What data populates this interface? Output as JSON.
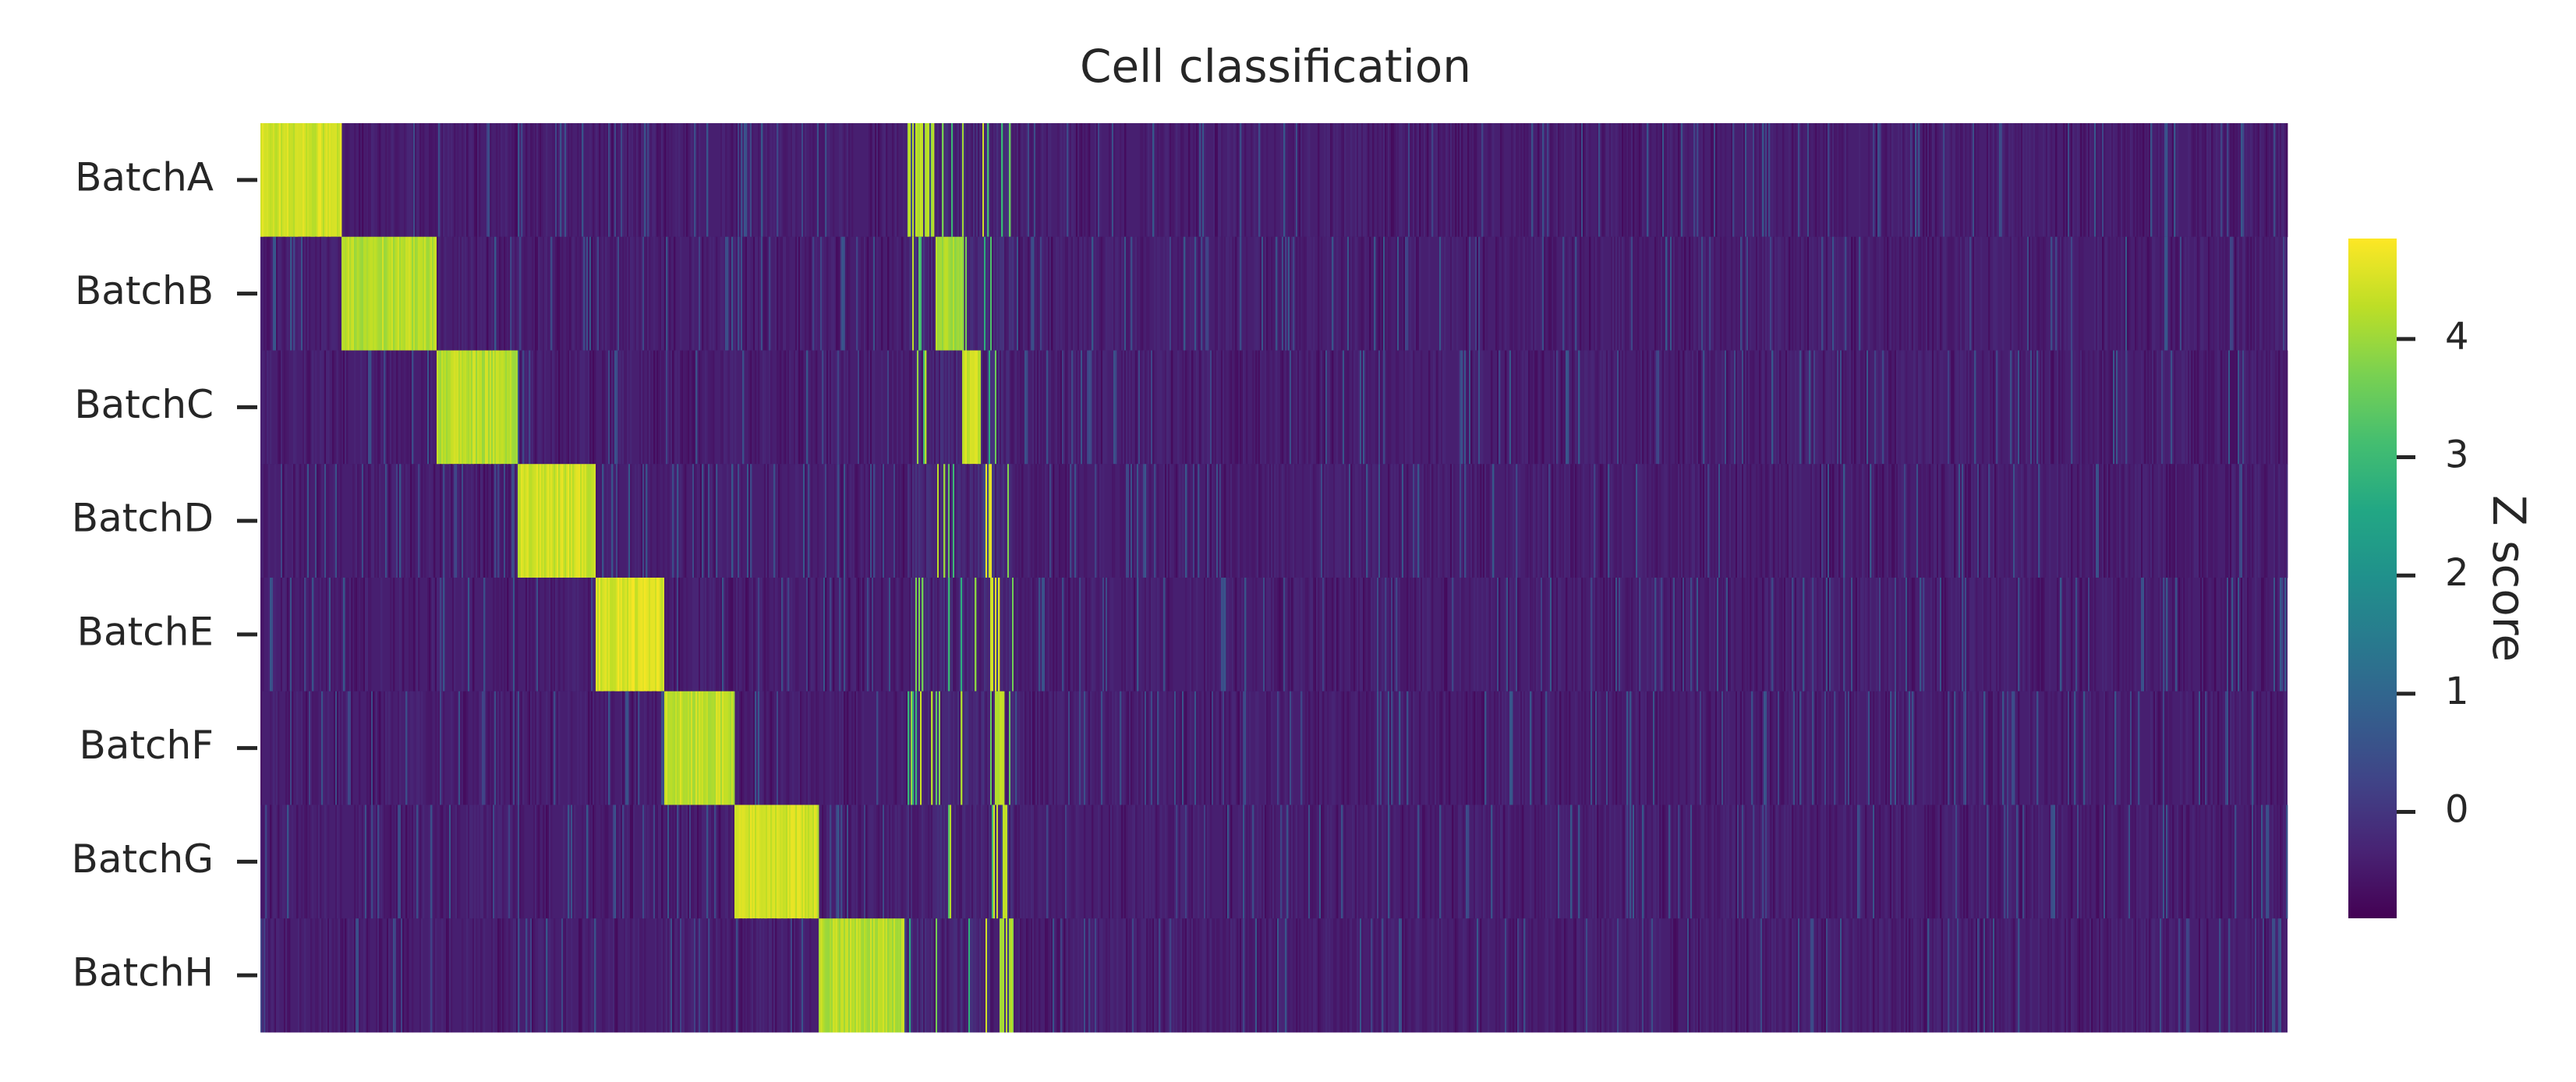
{
  "chart_data": {
    "type": "heatmap",
    "title": "Cell classification",
    "rows": [
      "BatchA",
      "BatchB",
      "BatchC",
      "BatchD",
      "BatchE",
      "BatchF",
      "BatchG",
      "BatchH"
    ],
    "n_columns": 1300,
    "value_range": [
      -0.9,
      4.85
    ],
    "colorscale": "viridis",
    "background_value": -0.4,
    "blocks": [
      {
        "row": "BatchA",
        "col_start": 0,
        "col_end": 52,
        "value": 4.5
      },
      {
        "row": "BatchB",
        "col_start": 52,
        "col_end": 113,
        "value": 4.3
      },
      {
        "row": "BatchC",
        "col_start": 113,
        "col_end": 165,
        "value": 4.3
      },
      {
        "row": "BatchD",
        "col_start": 165,
        "col_end": 215,
        "value": 4.5
      },
      {
        "row": "BatchE",
        "col_start": 215,
        "col_end": 259,
        "value": 4.6
      },
      {
        "row": "BatchF",
        "col_start": 259,
        "col_end": 304,
        "value": 4.4
      },
      {
        "row": "BatchG",
        "col_start": 304,
        "col_end": 358,
        "value": 4.5
      },
      {
        "row": "BatchH",
        "col_start": 358,
        "col_end": 413,
        "value": 4.3
      }
    ],
    "secondary_markers": [
      {
        "row": "BatchA",
        "col_start": 415,
        "col_end": 432,
        "value": 4.4
      },
      {
        "row": "BatchB",
        "col_start": 433,
        "col_end": 451,
        "value": 4.2
      },
      {
        "row": "BatchC",
        "col_start": 450,
        "col_end": 462,
        "value": 4.5
      },
      {
        "row": "BatchD",
        "col_start": 463,
        "col_end": 471,
        "value": 4.7
      },
      {
        "row": "BatchE",
        "col_start": 468,
        "col_end": 474,
        "value": 4.6
      },
      {
        "row": "BatchF",
        "col_start": 470,
        "col_end": 477,
        "value": 4.4
      },
      {
        "row": "BatchG",
        "col_start": 472,
        "col_end": 480,
        "value": 4.5
      },
      {
        "row": "BatchH",
        "col_start": 474,
        "col_end": 483,
        "value": 4.3
      }
    ],
    "scattered_range": [
      415,
      483
    ],
    "colorbar": {
      "label": "Z score",
      "ticks": [
        0,
        1,
        2,
        3,
        4
      ]
    },
    "x_ticks_visible": false
  }
}
